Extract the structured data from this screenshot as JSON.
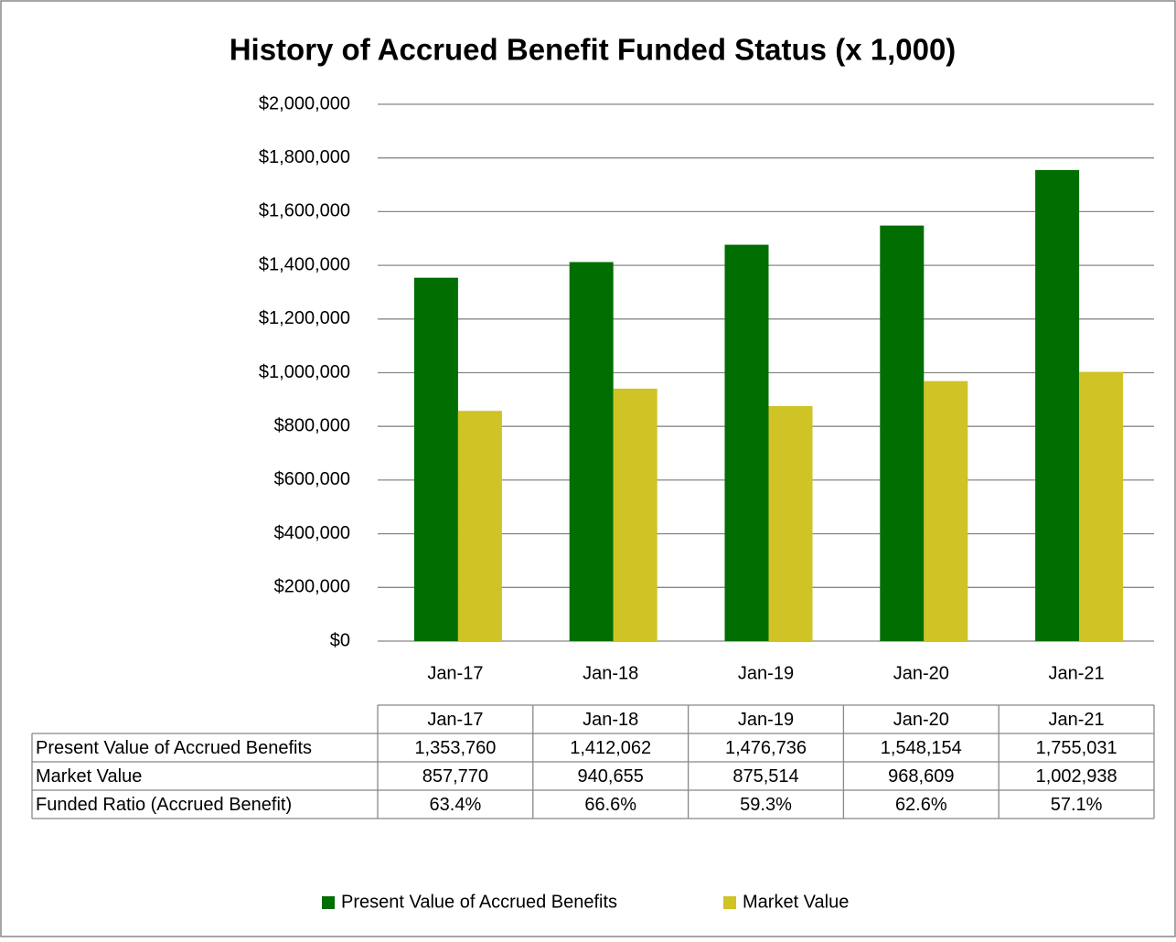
{
  "chart_data": {
    "type": "bar",
    "title": "History of Accrued Benefit Funded Status (x 1,000)",
    "categories": [
      "Jan-17",
      "Jan-18",
      "Jan-19",
      "Jan-20",
      "Jan-21"
    ],
    "series": [
      {
        "name": "Present Value of Accrued Benefits",
        "color": "#006e00",
        "values": [
          1353760,
          1412062,
          1476736,
          1548154,
          1755031
        ],
        "value_labels": [
          "1,353,760",
          "1,412,062",
          "1,476,736",
          "1,548,154",
          "1,755,031"
        ]
      },
      {
        "name": "Market Value",
        "color": "#cfc325",
        "values": [
          857770,
          940655,
          875514,
          968609,
          1002938
        ],
        "value_labels": [
          "857,770",
          "940,655",
          "875,514",
          "968,609",
          "1,002,938"
        ]
      }
    ],
    "table": {
      "rows": [
        {
          "name": "Funded Ratio (Accrued Benefit)",
          "values": [
            63.4,
            66.6,
            59.3,
            62.6,
            57.1
          ],
          "value_labels": [
            "63.4%",
            "66.6%",
            "59.3%",
            "62.6%",
            "57.1%"
          ]
        }
      ]
    },
    "ylim": [
      0,
      2000000
    ],
    "yticks": [
      {
        "value": 0,
        "label": "$0"
      },
      {
        "value": 200000,
        "label": "$200,000"
      },
      {
        "value": 400000,
        "label": "$400,000"
      },
      {
        "value": 600000,
        "label": "$600,000"
      },
      {
        "value": 800000,
        "label": "$800,000"
      },
      {
        "value": 1000000,
        "label": "$1,000,000"
      },
      {
        "value": 1200000,
        "label": "$1,200,000"
      },
      {
        "value": 1400000,
        "label": "$1,400,000"
      },
      {
        "value": 1600000,
        "label": "$1,600,000"
      },
      {
        "value": 1800000,
        "label": "$1,800,000"
      },
      {
        "value": 2000000,
        "label": "$2,000,000"
      }
    ],
    "grid": true,
    "legend": "bottom"
  }
}
